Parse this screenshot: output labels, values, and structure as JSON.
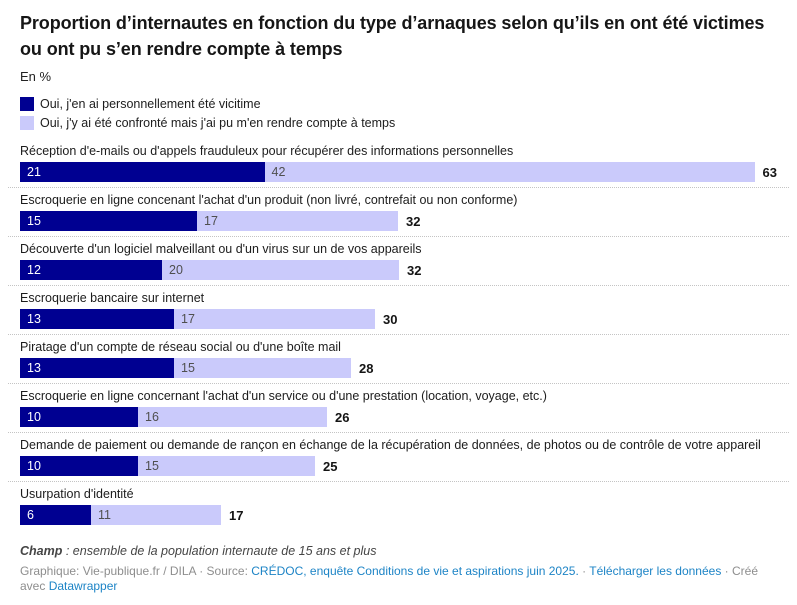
{
  "page": {
    "title": "Proportion d’internautes en fonction du type d’arnaques selon qu’ils en ont été victimes ou ont pu s’en rendre compte à temps",
    "unit_label": "En %"
  },
  "colors": {
    "victime": "#000091",
    "compte_a_temps": "#cacafb",
    "link_blue": "#1d84c6",
    "separator": "#c4c4c4"
  },
  "legend": [
    {
      "label": "Oui, j'en ai personnellement été vicitime",
      "color": "#000091"
    },
    {
      "label": "Oui, j'y ai été confronté mais j'ai pu m'en rendre compte à temps",
      "color": "#cacafb"
    }
  ],
  "chart_data": {
    "type": "bar",
    "orientation": "horizontal",
    "stacked": true,
    "unit": "%",
    "xlim": [
      0,
      63
    ],
    "grid": false,
    "legend_position": "top",
    "categories": [
      "Réception d'e-mails ou d'appels frauduleux pour récupérer des informations personnelles",
      "Escroquerie en ligne concenant l'achat d'un produit (non livré, contrefait ou non conforme)",
      "Découverte d'un logiciel malveillant ou d'un virus sur un de vos appareils",
      "Escroquerie bancaire sur internet",
      "Piratage d'un compte de réseau social ou d'une boîte mail",
      "Escroquerie en ligne concernant l'achat d'un service ou d'une prestation (location, voyage, etc.)",
      "Demande de paiement ou demande de rançon en échange de la récupération de données, de photos ou de contrôle de votre appareil",
      "Usurpation d'identité"
    ],
    "series": [
      {
        "name": "Oui, j'en ai personnellement été vicitime",
        "values": [
          21,
          15,
          12,
          13,
          13,
          10,
          10,
          6
        ]
      },
      {
        "name": "Oui, j'y ai été confronté mais j'ai pu m'en rendre compte à temps",
        "values": [
          42,
          17,
          20,
          17,
          15,
          16,
          15,
          11
        ]
      }
    ],
    "totals": [
      63,
      32,
      32,
      30,
      28,
      26,
      25,
      17
    ]
  },
  "footer": {
    "champ_label": "Champ",
    "champ_rest": " : ensemble de la population internaute de 15 ans et plus",
    "credit_prefix": "Graphique: Vie-publique.fr / DILA · Source: ",
    "source_link": "CRÉDOC, enquête Conditions de vie et aspirations juin 2025.",
    "separator": " · ",
    "download_link": "Télécharger les données",
    "created_prefix": " · Créé avec ",
    "creator_link": "Datawrapper"
  }
}
